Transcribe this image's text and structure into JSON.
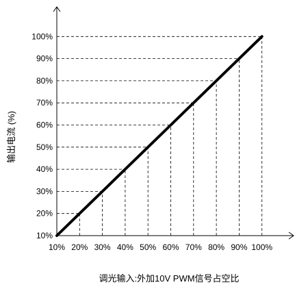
{
  "chart_data": {
    "type": "line",
    "x": [
      10,
      20,
      30,
      40,
      50,
      60,
      70,
      80,
      90,
      100
    ],
    "series": [
      {
        "values": [
          10,
          20,
          30,
          40,
          50,
          60,
          70,
          80,
          90,
          100
        ]
      }
    ],
    "x_tick_labels": [
      "10%",
      "20%",
      "30%",
      "40%",
      "50%",
      "60%",
      "70%",
      "80%",
      "90%",
      "100%"
    ],
    "y_tick_labels": [
      "10%",
      "20%",
      "30%",
      "40%",
      "50%",
      "60%",
      "70%",
      "80%",
      "90%",
      "100%"
    ],
    "xlabel": "调光输入:外加10V PWM信号占空比",
    "ylabel": "输出电流 (%)",
    "xlim": [
      10,
      110
    ],
    "ylim": [
      10,
      110
    ],
    "grid": "dashed drop lines from each point to both axes",
    "legend": "none",
    "line_color": "#000000"
  }
}
